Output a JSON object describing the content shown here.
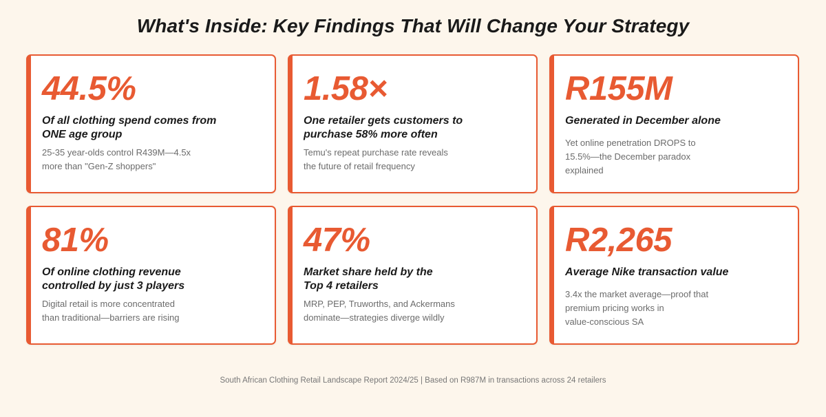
{
  "page": {
    "title": "What's Inside: Key Findings That Will Change Your Strategy",
    "footer": "South African Clothing Retail Landscape Report 2024/25 | Based on R987M in transactions across 24 retailers"
  },
  "colors": {
    "accent": "#e85a32",
    "background": "#fdf6ec",
    "card": "#ffffff",
    "heading": "#1a1a1a",
    "muted": "#6b6b6b"
  },
  "cards": [
    {
      "stat": "44.5%",
      "headline": "Of all clothing spend comes from\nONE age group",
      "description": "25-35 year-olds control R439M—4.5x\nmore than \"Gen-Z shoppers\""
    },
    {
      "stat": "1.58×",
      "headline": "One retailer gets customers to\npurchase 58% more often",
      "description": "Temu's repeat purchase rate reveals\nthe future of retail frequency"
    },
    {
      "stat": "R155M",
      "headline": "Generated in December alone",
      "description": "Yet online penetration DROPS to\n15.5%—the December paradox\nexplained"
    },
    {
      "stat": "81%",
      "headline": "Of online clothing revenue\ncontrolled by just 3 players",
      "description": "Digital retail is more concentrated\nthan traditional—barriers are rising"
    },
    {
      "stat": "47%",
      "headline": "Market share held by the\nTop 4 retailers",
      "description": "MRP, PEP, Truworths, and Ackermans\ndominate—strategies diverge wildly"
    },
    {
      "stat": "R2,265",
      "headline": "Average Nike transaction value",
      "description": "3.4x the market average—proof that\npremium pricing works in\nvalue-conscious SA"
    }
  ]
}
